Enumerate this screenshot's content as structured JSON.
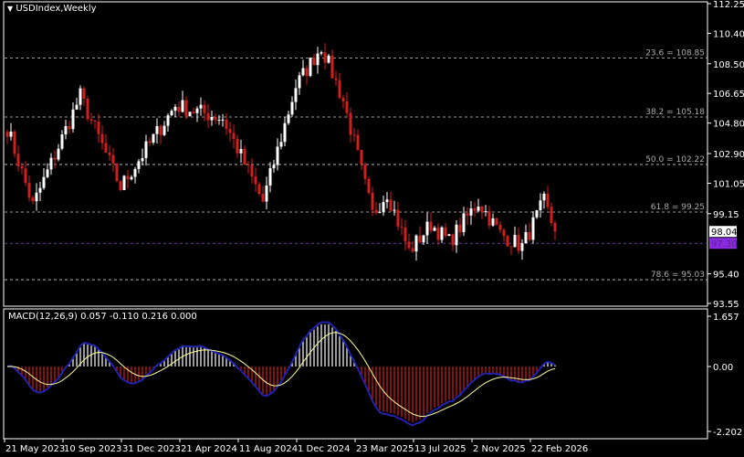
{
  "window": {
    "title": "USDIndex,Weekly",
    "menu_icon": "triangle-down-icon"
  },
  "colors": {
    "bull": "#ffffff",
    "bear": "#d01f1f",
    "signal": "#ffff99",
    "macd_line": "#2222aa",
    "fib": "#cccccc",
    "current_price_bg": "#ffffff",
    "mark_price_bg": "#8a2be2",
    "mark_line": "#6a3fa0"
  },
  "chart_data": [
    {
      "type": "candlestick",
      "title": "USDIndex,Weekly",
      "y_ticks": [
        "112.25",
        "110.40",
        "108.50",
        "106.65",
        "104.80",
        "102.90",
        "101.05",
        "99.15",
        "95.40",
        "93.55"
      ],
      "ylim": [
        93.55,
        112.25
      ],
      "x_ticks": [
        "21 May 2023",
        "10 Sep 2023",
        "31 Dec 2023",
        "21 Apr 2024",
        "11 Aug 2024",
        "1 Dec 2024",
        "23 Mar 2025",
        "13 Jul 2025",
        "2 Nov 2025",
        "22 Feb 2026"
      ],
      "current_price": "98.04",
      "marked_price": "97.30",
      "fibonacci": [
        {
          "label": "23.6 = 108.85",
          "value": 108.85
        },
        {
          "label": "38.2 = 105.18",
          "value": 105.18
        },
        {
          "label": "50.0 = 102.22",
          "value": 102.22
        },
        {
          "label": "61.8 = 99.25",
          "value": 99.25
        },
        {
          "label": "78.6 = 95.03",
          "value": 95.03
        }
      ],
      "close_path": [
        [
          "2023-05-21",
          104.5
        ],
        [
          "2023-07-09",
          99.65
        ],
        [
          "2023-10-08",
          106.5
        ],
        [
          "2023-12-24",
          100.8
        ],
        [
          "2024-04-07",
          105.9
        ],
        [
          "2024-07-07",
          105.1
        ],
        [
          "2024-09-22",
          99.9
        ],
        [
          "2024-11-24",
          107.1
        ],
        [
          "2025-01-12",
          109.6
        ],
        [
          "2025-02-23",
          106.2
        ],
        [
          "2025-03-16",
          103.6
        ],
        [
          "2025-04-20",
          99.1
        ],
        [
          "2025-05-18",
          100.5
        ],
        [
          "2025-06-29",
          96.8
        ],
        [
          "2025-08-10",
          98.5
        ],
        [
          "2025-09-14",
          97.4
        ],
        [
          "2025-11-09",
          99.9
        ],
        [
          "2025-12-21",
          97.9
        ],
        [
          "2026-02-01",
          97.1
        ],
        [
          "2026-03-15",
          99.9
        ],
        [
          "2026-04-05",
          98.04
        ]
      ],
      "grid": false
    },
    {
      "type": "macd",
      "label": "MACD(12,26,9) 0.057 -0.110 0.216 0.000",
      "y_ticks": [
        "1.657",
        "0.00",
        "-2.202"
      ],
      "ylim": [
        -2.202,
        1.657
      ]
    }
  ]
}
